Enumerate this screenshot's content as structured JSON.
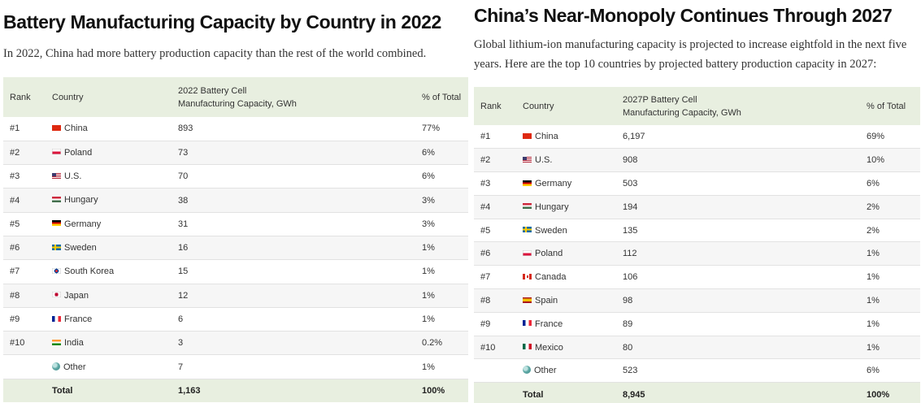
{
  "flag_colors": {
    "china": "#de2910",
    "poland": "#dc143c",
    "us": "#b22234",
    "hungary": "#436f4d",
    "germany": "#000000",
    "sweden": "#006aa7",
    "south_korea": "#0047a0",
    "japan": "#bc002d",
    "france": "#002395",
    "india": "#ff9933",
    "canada": "#d52b1e",
    "spain": "#f1bf00",
    "mexico": "#006847",
    "other": "#5fa9a6"
  },
  "left": {
    "title": "Battery Manufacturing Capacity by Country in 2022",
    "subtitle": "In 2022, China had more battery production capacity than the rest of the world combined.",
    "headers": {
      "rank": "Rank",
      "country": "Country",
      "capacity_line1": "2022 Battery Cell",
      "capacity_line2": "Manufacturing Capacity, GWh",
      "share": "% of Total"
    },
    "rows": [
      {
        "rank": "#1",
        "country": "China",
        "capacity": "893",
        "share": "77%"
      },
      {
        "rank": "#2",
        "country": "Poland",
        "capacity": "73",
        "share": "6%"
      },
      {
        "rank": "#3",
        "country": "U.S.",
        "capacity": "70",
        "share": "6%"
      },
      {
        "rank": "#4",
        "country": "Hungary",
        "capacity": "38",
        "share": "3%"
      },
      {
        "rank": "#5",
        "country": "Germany",
        "capacity": "31",
        "share": "3%"
      },
      {
        "rank": "#6",
        "country": "Sweden",
        "capacity": "16",
        "share": "1%"
      },
      {
        "rank": "#7",
        "country": "South Korea",
        "capacity": "15",
        "share": "1%"
      },
      {
        "rank": "#8",
        "country": "Japan",
        "capacity": "12",
        "share": "1%"
      },
      {
        "rank": "#9",
        "country": "France",
        "capacity": "6",
        "share": "1%"
      },
      {
        "rank": "#10",
        "country": "India",
        "capacity": "3",
        "share": "0.2%"
      },
      {
        "rank": "",
        "country": "Other",
        "capacity": "7",
        "share": "1%"
      }
    ],
    "total": {
      "label": "Total",
      "capacity": "1,163",
      "share": "100%"
    }
  },
  "right": {
    "title": "China’s Near-Monopoly Continues Through 2027",
    "subtitle": "Global lithium-ion manufacturing capacity is projected to increase eightfold in the next five years. Here are the top 10 countries by projected battery production capacity in 2027:",
    "headers": {
      "rank": "Rank",
      "country": "Country",
      "capacity_line1": "2027P Battery Cell",
      "capacity_line2": "Manufacturing Capacity, GWh",
      "share": "% of Total"
    },
    "rows": [
      {
        "rank": "#1",
        "country": "China",
        "capacity": "6,197",
        "share": "69%"
      },
      {
        "rank": "#2",
        "country": "U.S.",
        "capacity": "908",
        "share": "10%"
      },
      {
        "rank": "#3",
        "country": "Germany",
        "capacity": "503",
        "share": "6%"
      },
      {
        "rank": "#4",
        "country": "Hungary",
        "capacity": "194",
        "share": "2%"
      },
      {
        "rank": "#5",
        "country": "Sweden",
        "capacity": "135",
        "share": "2%"
      },
      {
        "rank": "#6",
        "country": "Poland",
        "capacity": "112",
        "share": "1%"
      },
      {
        "rank": "#7",
        "country": "Canada",
        "capacity": "106",
        "share": "1%"
      },
      {
        "rank": "#8",
        "country": "Spain",
        "capacity": "98",
        "share": "1%"
      },
      {
        "rank": "#9",
        "country": "France",
        "capacity": "89",
        "share": "1%"
      },
      {
        "rank": "#10",
        "country": "Mexico",
        "capacity": "80",
        "share": "1%"
      },
      {
        "rank": "",
        "country": "Other",
        "capacity": "523",
        "share": "6%"
      }
    ],
    "total": {
      "label": "Total",
      "capacity": "8,945",
      "share": "100%"
    }
  }
}
